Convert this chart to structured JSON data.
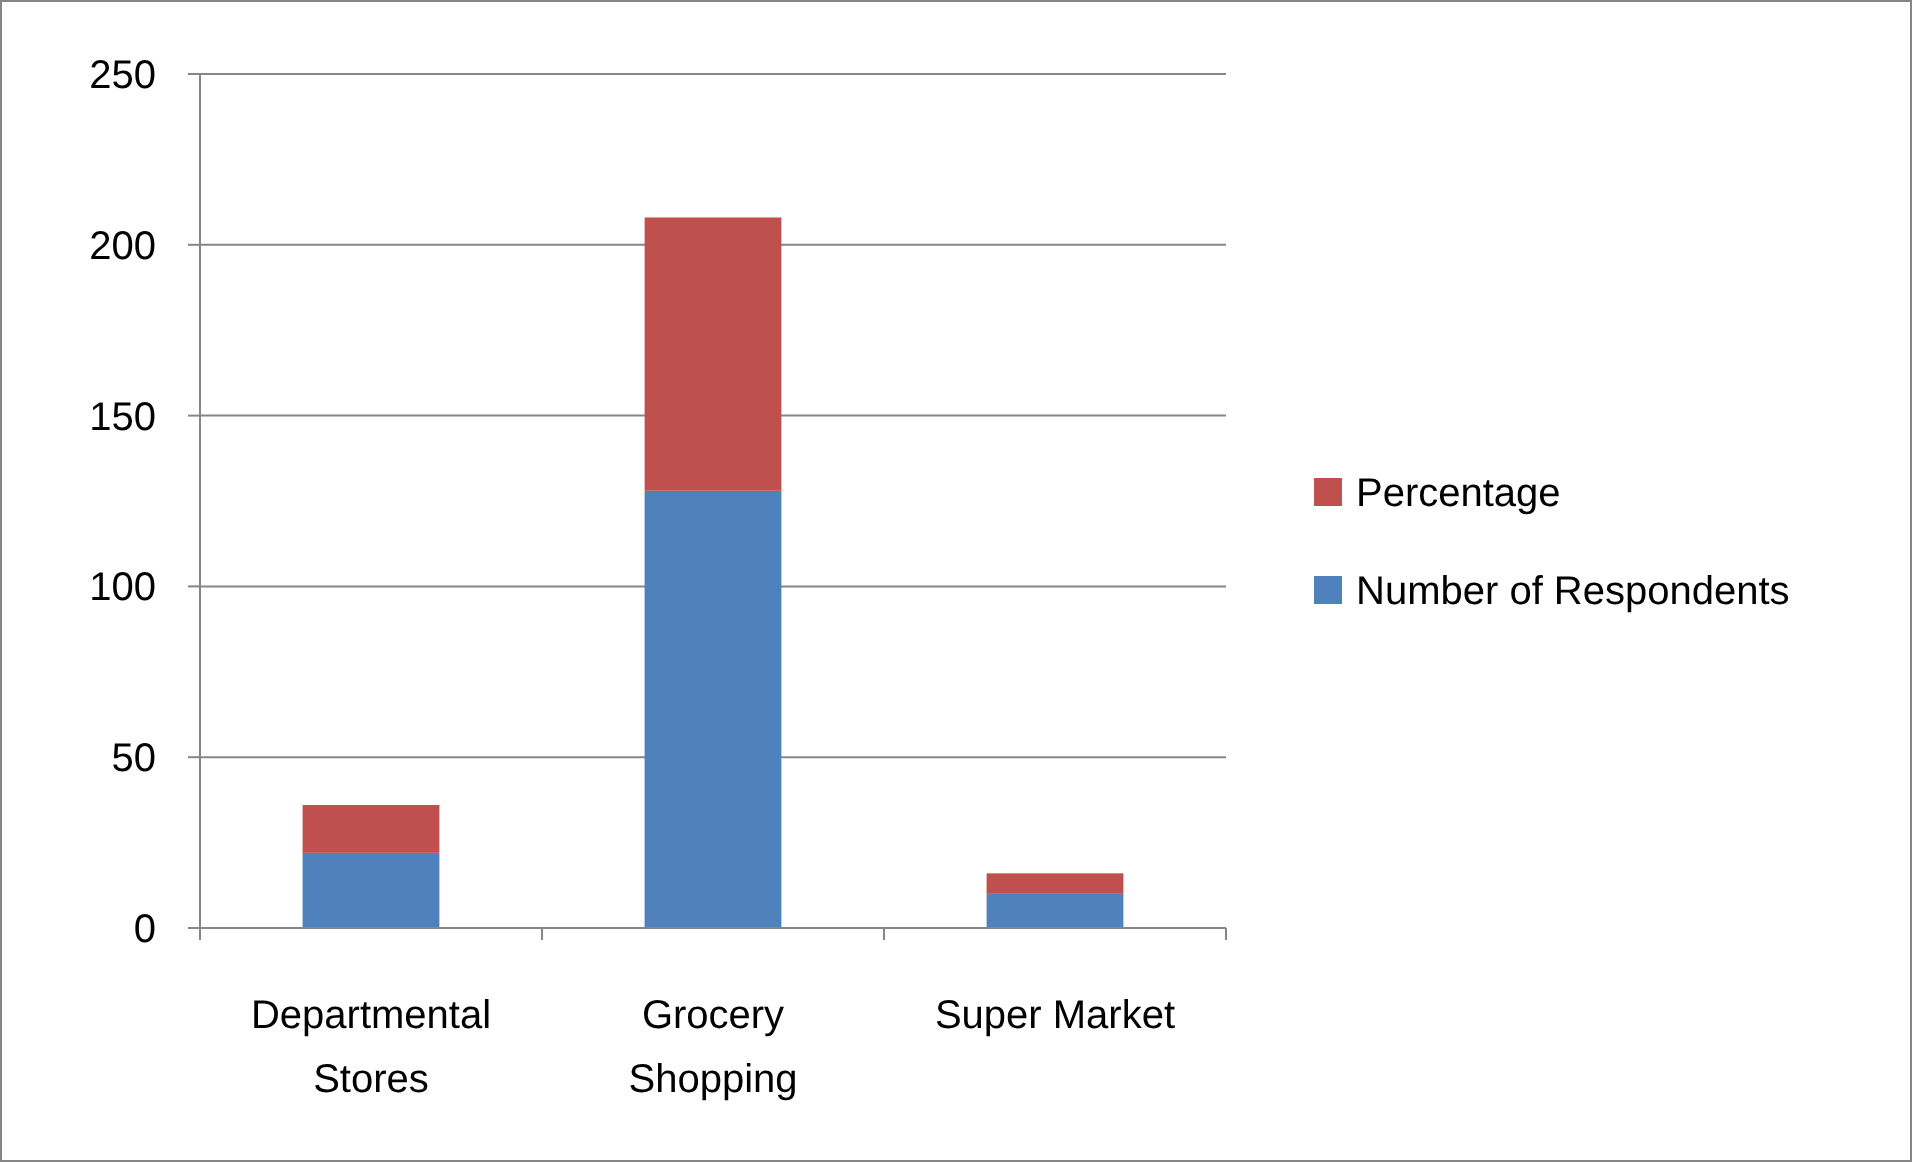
{
  "chart_data": {
    "type": "bar",
    "stacked": true,
    "categories": [
      "Departmental Stores",
      "Grocery Shopping",
      "Super Market"
    ],
    "series": [
      {
        "name": "Number of Respondents",
        "color": "#4f81bd",
        "values": [
          22,
          128,
          10
        ]
      },
      {
        "name": "Percentage",
        "color": "#c0504d",
        "values": [
          14,
          80,
          6
        ]
      }
    ],
    "ylim": [
      0,
      250
    ],
    "yticks": [
      0,
      50,
      100,
      150,
      200,
      250
    ],
    "grid": "y",
    "legend": "right"
  }
}
